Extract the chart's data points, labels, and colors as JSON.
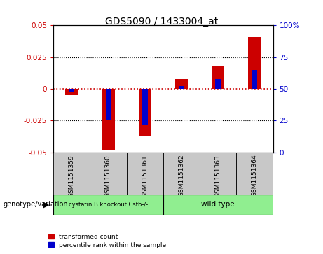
{
  "title": "GDS5090 / 1433004_at",
  "samples": [
    "GSM1151359",
    "GSM1151360",
    "GSM1151361",
    "GSM1151362",
    "GSM1151363",
    "GSM1151364"
  ],
  "red_values": [
    -0.005,
    -0.048,
    -0.037,
    0.008,
    0.018,
    0.041
  ],
  "blue_values_pct": [
    47,
    25,
    22,
    52,
    58,
    65
  ],
  "ylim_left": [
    -0.05,
    0.05
  ],
  "ylim_right": [
    0,
    100
  ],
  "yticks_left": [
    -0.05,
    -0.025,
    0,
    0.025,
    0.05
  ],
  "yticks_right": [
    0,
    25,
    50,
    75,
    100
  ],
  "group1_label": "cystatin B knockout Cstb-/-",
  "group2_label": "wild type",
  "group1_indices": [
    0,
    1,
    2
  ],
  "group2_indices": [
    3,
    4,
    5
  ],
  "group1_color": "#90EE90",
  "group2_color": "#90EE90",
  "bar_color_red": "#CC0000",
  "bar_color_blue": "#0000CC",
  "legend_label_red": "transformed count",
  "legend_label_blue": "percentile rank within the sample",
  "genotype_label": "genotype/variation",
  "left_axis_color": "#CC0000",
  "right_axis_color": "#0000CC",
  "red_bar_width": 0.35,
  "blue_bar_width": 0.15,
  "sample_box_color": "#C8C8C8",
  "zero_line_color": "#CC0000",
  "grid_line_color": "black"
}
